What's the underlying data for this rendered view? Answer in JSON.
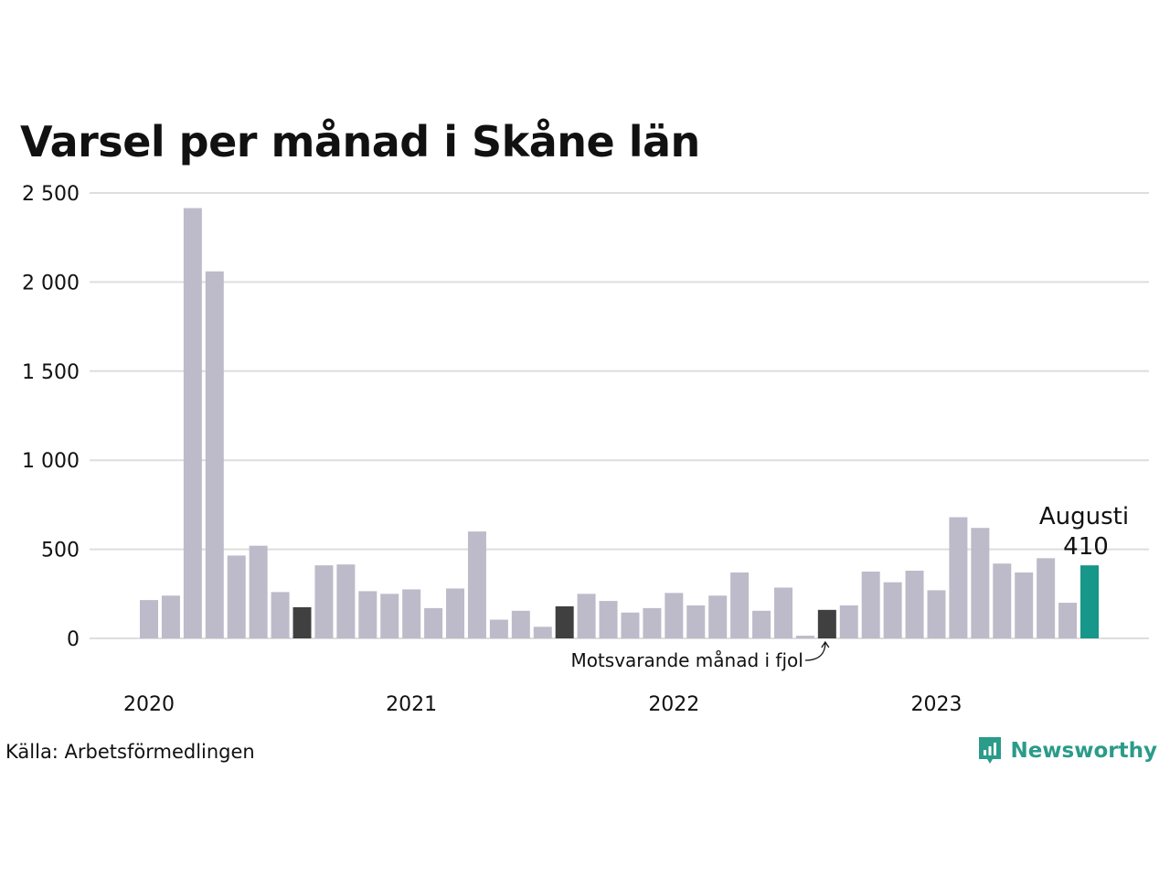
{
  "title": "Varsel per månad i Skåne län",
  "source": "Källa: Arbetsförmedlingen",
  "brand": {
    "name": "Newsworthy",
    "icon": "newsworthy-logo-icon",
    "color": "#2b9b8a"
  },
  "chart_data": {
    "type": "bar",
    "title": "Varsel per månad i Skåne län",
    "xlabel": "",
    "ylabel": "",
    "ylim": [
      0,
      2500
    ],
    "yticks": [
      0,
      500,
      1000,
      1500,
      2000,
      2500
    ],
    "ytick_labels": [
      "0",
      "500",
      "1 000",
      "1 500",
      "2 000",
      "2 500"
    ],
    "grid": true,
    "categories": [
      "2020-01",
      "2020-02",
      "2020-03",
      "2020-04",
      "2020-05",
      "2020-06",
      "2020-07",
      "2020-08",
      "2020-09",
      "2020-10",
      "2020-11",
      "2020-12",
      "2021-01",
      "2021-02",
      "2021-03",
      "2021-04",
      "2021-05",
      "2021-06",
      "2021-07",
      "2021-08",
      "2021-09",
      "2021-10",
      "2021-11",
      "2021-12",
      "2022-01",
      "2022-02",
      "2022-03",
      "2022-04",
      "2022-05",
      "2022-06",
      "2022-07",
      "2022-08",
      "2022-09",
      "2022-10",
      "2022-11",
      "2022-12",
      "2023-01",
      "2023-02",
      "2023-03",
      "2023-04",
      "2023-05",
      "2023-06",
      "2023-07",
      "2023-08"
    ],
    "values": [
      215,
      240,
      2415,
      2060,
      465,
      520,
      260,
      175,
      410,
      415,
      265,
      250,
      275,
      170,
      280,
      600,
      105,
      155,
      65,
      180,
      250,
      210,
      145,
      170,
      255,
      185,
      240,
      370,
      155,
      285,
      15,
      160,
      185,
      375,
      315,
      380,
      270,
      680,
      620,
      420,
      370,
      450,
      200,
      410
    ],
    "year_labels": [
      {
        "label": "2020",
        "index": 0
      },
      {
        "label": "2021",
        "index": 12
      },
      {
        "label": "2022",
        "index": 24
      },
      {
        "label": "2023",
        "index": 36
      }
    ],
    "colors": {
      "default": "#bdbbc9",
      "comparison": "#404040",
      "current": "#17968a",
      "grid": "#dedede"
    },
    "comparison_indices": [
      7,
      19,
      31
    ],
    "highlight": {
      "index": 43,
      "month": "Augusti",
      "value": "410"
    },
    "annotation": {
      "text": "Motsvarande månad i fjol",
      "index": 31
    }
  }
}
